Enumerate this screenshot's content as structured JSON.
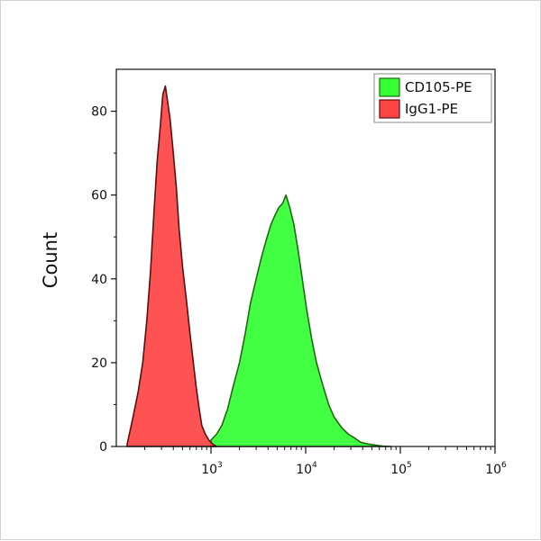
{
  "chart_data": {
    "type": "area",
    "title": "",
    "xlabel": "",
    "ylabel": "Count",
    "x_scale": "log",
    "xlim": [
      100,
      1000000
    ],
    "ylim": [
      0,
      90
    ],
    "x_ticks": [
      {
        "value": 1000,
        "base": "10",
        "exp": "3"
      },
      {
        "value": 10000,
        "base": "10",
        "exp": "4"
      },
      {
        "value": 100000,
        "base": "10",
        "exp": "5"
      },
      {
        "value": 1000000,
        "base": "10",
        "exp": "6"
      }
    ],
    "y_ticks": [
      0,
      20,
      40,
      60,
      80
    ],
    "grid": false,
    "legend": {
      "position": "top-right"
    },
    "series": [
      {
        "name": "CD105-PE",
        "color": "#33ff33",
        "edge_color": "#1f6b12",
        "x": [
          1000,
          1150,
          1300,
          1500,
          1700,
          2000,
          2300,
          2600,
          3000,
          3400,
          3800,
          4300,
          4700,
          5200,
          5700,
          6200,
          6800,
          7500,
          8300,
          9200,
          10200,
          11500,
          13000,
          15000,
          17500,
          20000,
          24000,
          28000,
          33000,
          38000,
          45000,
          55000,
          65000,
          80000
        ],
        "y": [
          1.5,
          3,
          5,
          9,
          14,
          20,
          27,
          34,
          40,
          45,
          49,
          53,
          55,
          57,
          58,
          60,
          57,
          53,
          47,
          40,
          33,
          26,
          20,
          15,
          10,
          7,
          4.5,
          3,
          2,
          1,
          0.6,
          0.3,
          0.1,
          0
        ]
      },
      {
        "name": "IgG1-PE",
        "color": "#ff4444",
        "edge_color": "#5a0f10",
        "x": [
          130,
          150,
          170,
          190,
          210,
          230,
          250,
          270,
          290,
          310,
          330,
          350,
          370,
          400,
          430,
          460,
          500,
          550,
          600,
          650,
          700,
          750,
          800,
          870,
          950,
          1050,
          1150
        ],
        "y": [
          0.5,
          7,
          13,
          20,
          30,
          42,
          56,
          68,
          76,
          84,
          86,
          82,
          78,
          70,
          62,
          52,
          43,
          35,
          27,
          20,
          14,
          9,
          5,
          3,
          1.5,
          0.5,
          0
        ]
      }
    ]
  }
}
